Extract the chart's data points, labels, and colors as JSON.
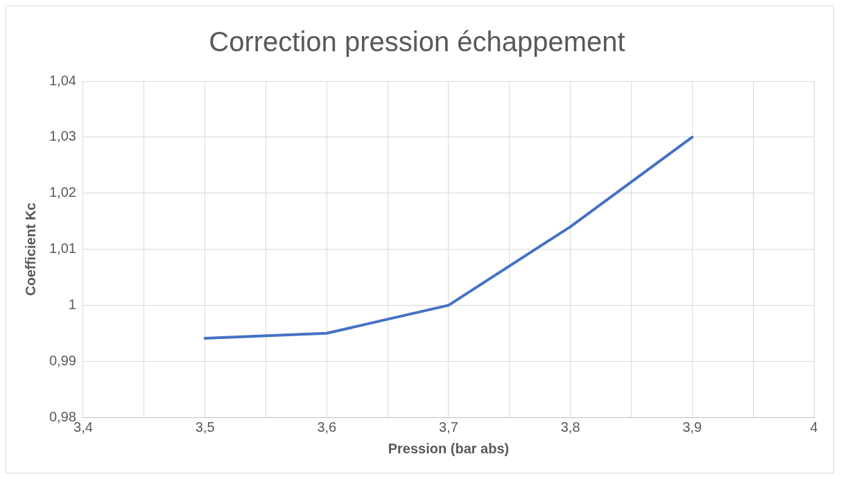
{
  "chart_data": {
    "type": "line",
    "title": "Correction pression échappement",
    "xlabel": "Pression (bar abs)",
    "ylabel": "Coefficient Kc",
    "x": [
      3.5,
      3.6,
      3.7,
      3.8,
      3.9
    ],
    "series": [
      {
        "color": "#4472c4",
        "values": [
          0.9941,
          0.995,
          1.0,
          1.014,
          1.03
        ]
      }
    ],
    "xlim": [
      3.4,
      4
    ],
    "xticks": [
      {
        "value": 3.4,
        "label": "3,4"
      },
      {
        "value": 3.45,
        "label": null
      },
      {
        "value": 3.5,
        "label": "3,5"
      },
      {
        "value": 3.55,
        "label": null
      },
      {
        "value": 3.6,
        "label": "3,6"
      },
      {
        "value": 3.65,
        "label": null
      },
      {
        "value": 3.7,
        "label": "3,7"
      },
      {
        "value": 3.75,
        "label": null
      },
      {
        "value": 3.8,
        "label": "3,8"
      },
      {
        "value": 3.85,
        "label": null
      },
      {
        "value": 3.9,
        "label": "3,9"
      },
      {
        "value": 3.95,
        "label": null
      },
      {
        "value": 4,
        "label": "4"
      }
    ],
    "ylim": [
      0.98,
      1.04
    ],
    "yticks": [
      {
        "value": 0.98,
        "label": "0,98"
      },
      {
        "value": 0.99,
        "label": "0,99"
      },
      {
        "value": 1,
        "label": "1"
      },
      {
        "value": 1.01,
        "label": "1,01"
      },
      {
        "value": 1.02,
        "label": "1,02"
      },
      {
        "value": 1.03,
        "label": "1,03"
      },
      {
        "value": 1.04,
        "label": "1,04"
      }
    ],
    "grid": true,
    "legend": false,
    "marker": "none",
    "line_style": "solid"
  }
}
